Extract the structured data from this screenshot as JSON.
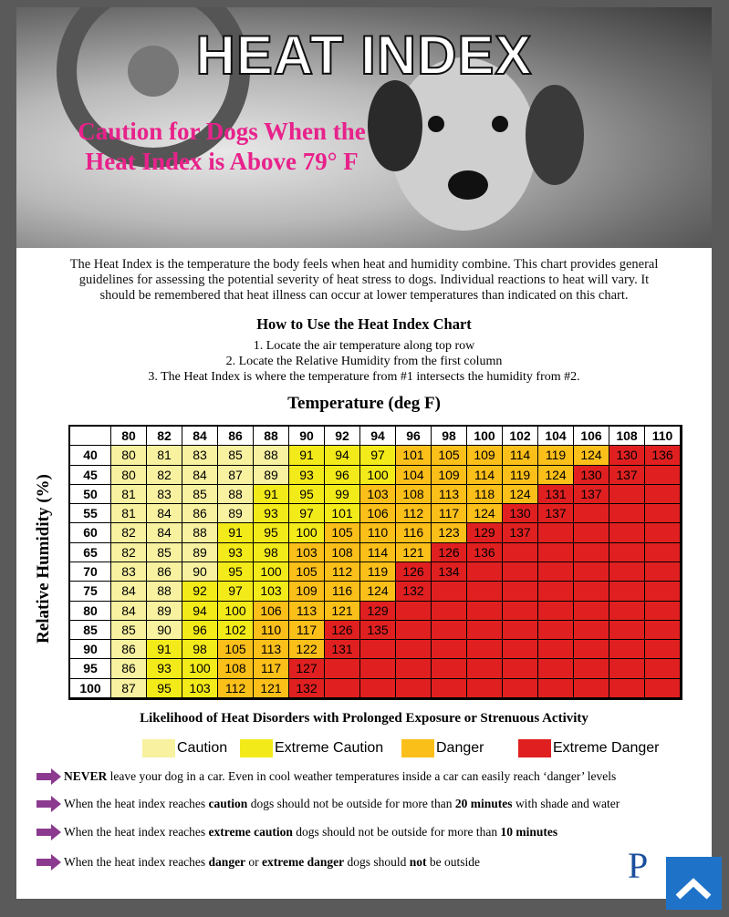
{
  "header": {
    "title": "HEAT INDEX",
    "subtitle_lines": [
      "Caution for Dogs When the",
      "Heat Index is Above 79° F"
    ]
  },
  "intro_lines": [
    "The Heat Index is the temperature the body feels when heat and humidity combine.  This chart provides general",
    "guidelines for assessing the potential severity of heat stress to dogs.  Individual reactions to heat will vary.  It",
    "should be remembered that heat illness can occur at lower temperatures than indicated on this chart."
  ],
  "howto": {
    "title": "How to Use the Heat Index Chart",
    "steps": [
      "1. Locate the air temperature along top row",
      "2. Locate the Relative Humidity from the first column",
      "3. The Heat Index is where the temperature from #1 intersects the humidity from #2."
    ]
  },
  "table": {
    "column_title": "Temperature (deg F)",
    "row_title": "Relative Humidity (%)",
    "temperatures": [
      80,
      82,
      84,
      86,
      88,
      90,
      92,
      94,
      96,
      98,
      100,
      102,
      104,
      106,
      108,
      110
    ],
    "rows": [
      {
        "humidity": 40,
        "values": [
          80,
          81,
          83,
          85,
          88,
          91,
          94,
          97,
          101,
          105,
          109,
          114,
          119,
          124,
          130,
          136
        ],
        "levels": [
          0,
          0,
          0,
          0,
          0,
          1,
          1,
          1,
          2,
          2,
          2,
          2,
          2,
          2,
          3,
          3
        ]
      },
      {
        "humidity": 45,
        "values": [
          80,
          82,
          84,
          87,
          89,
          93,
          96,
          100,
          104,
          109,
          114,
          119,
          124,
          130,
          137
        ],
        "levels": [
          0,
          0,
          0,
          0,
          0,
          1,
          1,
          1,
          2,
          2,
          2,
          2,
          2,
          3,
          3
        ]
      },
      {
        "humidity": 50,
        "values": [
          81,
          83,
          85,
          88,
          91,
          95,
          99,
          103,
          108,
          113,
          118,
          124,
          131,
          137
        ],
        "levels": [
          0,
          0,
          0,
          0,
          1,
          1,
          1,
          2,
          2,
          2,
          2,
          2,
          3,
          3
        ]
      },
      {
        "humidity": 55,
        "values": [
          81,
          84,
          86,
          89,
          93,
          97,
          101,
          106,
          112,
          117,
          124,
          130,
          137
        ],
        "levels": [
          0,
          0,
          0,
          0,
          1,
          1,
          1,
          2,
          2,
          2,
          2,
          3,
          3
        ]
      },
      {
        "humidity": 60,
        "values": [
          82,
          84,
          88,
          91,
          95,
          100,
          105,
          110,
          116,
          123,
          129,
          137
        ],
        "levels": [
          0,
          0,
          0,
          1,
          1,
          1,
          2,
          2,
          2,
          2,
          3,
          3
        ]
      },
      {
        "humidity": 65,
        "values": [
          82,
          85,
          89,
          93,
          98,
          103,
          108,
          114,
          121,
          126,
          136
        ],
        "levels": [
          0,
          0,
          0,
          1,
          1,
          2,
          2,
          2,
          2,
          3,
          3
        ]
      },
      {
        "humidity": 70,
        "values": [
          83,
          86,
          90,
          95,
          100,
          105,
          112,
          119,
          126,
          134
        ],
        "levels": [
          0,
          0,
          0,
          1,
          1,
          2,
          2,
          2,
          3,
          3
        ]
      },
      {
        "humidity": 75,
        "values": [
          84,
          88,
          92,
          97,
          103,
          109,
          116,
          124,
          132
        ],
        "levels": [
          0,
          0,
          1,
          1,
          1,
          2,
          2,
          2,
          3
        ]
      },
      {
        "humidity": 80,
        "values": [
          84,
          89,
          94,
          100,
          106,
          113,
          121,
          129
        ],
        "levels": [
          0,
          0,
          1,
          1,
          2,
          2,
          2,
          3
        ]
      },
      {
        "humidity": 85,
        "values": [
          85,
          90,
          96,
          102,
          110,
          117,
          126,
          135
        ],
        "levels": [
          0,
          0,
          1,
          1,
          2,
          2,
          3,
          3
        ]
      },
      {
        "humidity": 90,
        "values": [
          86,
          91,
          98,
          105,
          113,
          122,
          131
        ],
        "levels": [
          0,
          1,
          1,
          2,
          2,
          2,
          3
        ]
      },
      {
        "humidity": 95,
        "values": [
          86,
          93,
          100,
          108,
          117,
          127
        ],
        "levels": [
          0,
          1,
          1,
          2,
          2,
          3
        ]
      },
      {
        "humidity": 100,
        "values": [
          87,
          95,
          103,
          112,
          121,
          132
        ],
        "levels": [
          0,
          1,
          1,
          2,
          2,
          3
        ]
      }
    ]
  },
  "legend": {
    "title": "Likelihood of Heat Disorders with Prolonged Exposure or Strenuous Activity",
    "items": [
      {
        "name": "Caution",
        "color": "#f7f1a0"
      },
      {
        "name": "Extreme Caution",
        "color": "#f3ea1a"
      },
      {
        "name": "Danger",
        "color": "#fbbf1a"
      },
      {
        "name": "Extreme Danger",
        "color": "#e02020"
      }
    ]
  },
  "bullets": [
    [
      {
        "text": "NEVER",
        "bold": true
      },
      {
        "text": " leave your dog in a car.  Even in cool weather temperatures inside a car can easily reach ‘danger’ levels"
      }
    ],
    [
      {
        "text": "When the heat index reaches "
      },
      {
        "text": "caution",
        "bold": true
      },
      {
        "text": " dogs should not be outside for more than "
      },
      {
        "text": "20 minutes",
        "bold": true
      },
      {
        "text": " with shade and water"
      }
    ],
    [
      {
        "text": "When the heat index reaches "
      },
      {
        "text": "extreme caution",
        "bold": true
      },
      {
        "text": " dogs should not be outside for more than "
      },
      {
        "text": "10 minutes",
        "bold": true
      }
    ],
    [
      {
        "text": "When the heat index reaches "
      },
      {
        "text": "danger",
        "bold": true
      },
      {
        "text": " or "
      },
      {
        "text": "extreme danger",
        "bold": true
      },
      {
        "text": " dogs should "
      },
      {
        "text": "not",
        "bold": true
      },
      {
        "text": " be outside"
      }
    ]
  ]
}
